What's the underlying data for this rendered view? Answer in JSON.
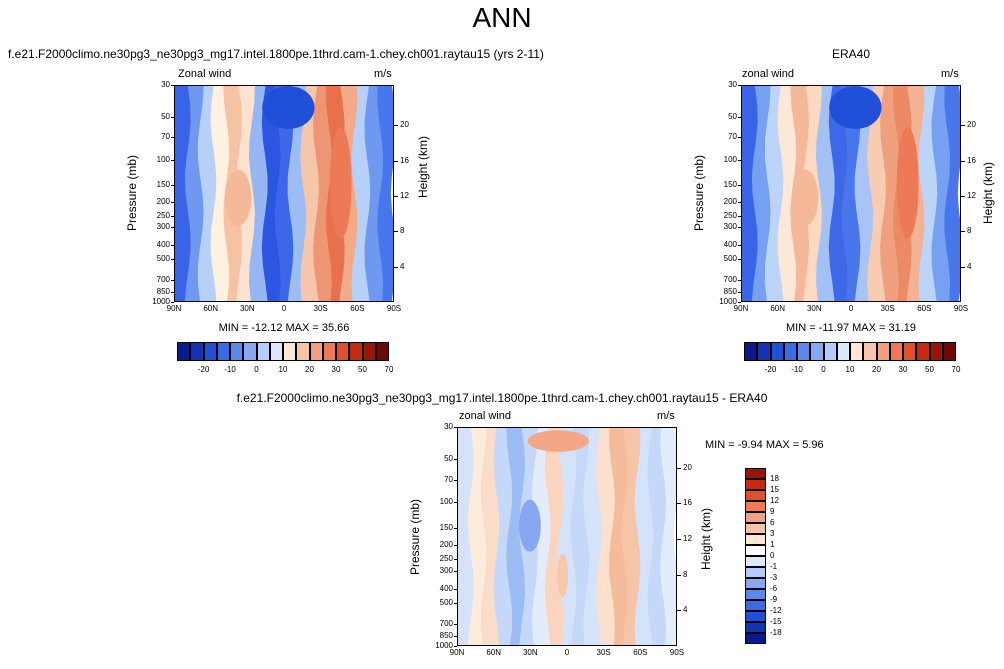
{
  "page": {
    "title": "ANN"
  },
  "chart_data": [
    {
      "type": "heatmap",
      "id": "model",
      "title": "f.e21.F2000climo.ne30pg3_ne30pg3_mg17.intel.1800pe.1thrd.cam-1.chey.ch001.raytau15 (yrs 2-11)",
      "left_label": "Zonal wind",
      "right_label": "m/s",
      "ylabel": "Pressure (mb)",
      "ylabel_right": "Height (km)",
      "x_ticks": [
        "90N",
        "60N",
        "30N",
        "0",
        "30S",
        "60S",
        "90S"
      ],
      "p_ticks": [
        "30",
        "50",
        "70",
        "100",
        "150",
        "200",
        "250",
        "300",
        "400",
        "500",
        "700",
        "850",
        "1000"
      ],
      "h_ticks": [
        "20",
        "16",
        "12",
        "8",
        "4"
      ],
      "stats": "MIN = -12.12   MAX =  35.66",
      "colorbar_labels": [
        "-20",
        "-10",
        "0",
        "10",
        "20",
        "30",
        "50",
        "70"
      ],
      "columns": [
        {
          "lat": 90,
          "c": "#3a64e8"
        },
        {
          "lat": 75,
          "c": "#6f99f0"
        },
        {
          "lat": 60,
          "c": "#b6d0f8"
        },
        {
          "lat": 45,
          "c": "#fff0e0"
        },
        {
          "lat": 35,
          "c": "#f5c2a4"
        },
        {
          "lat": 25,
          "c": "#fde2cf"
        },
        {
          "lat": 15,
          "c": "#96b6f4"
        },
        {
          "lat": 5,
          "c": "#2a56e0"
        },
        {
          "lat": -5,
          "c": "#3b67e8"
        },
        {
          "lat": -15,
          "c": "#9cbcf4"
        },
        {
          "lat": -25,
          "c": "#f6c6aa"
        },
        {
          "lat": -35,
          "c": "#ee9673"
        },
        {
          "lat": -45,
          "c": "#e8704c"
        },
        {
          "lat": -55,
          "c": "#f3aa88"
        },
        {
          "lat": -65,
          "c": "#b6d0f8"
        },
        {
          "lat": -75,
          "c": "#6f99f0"
        },
        {
          "lat": -90,
          "c": "#4777ec"
        }
      ]
    },
    {
      "type": "heatmap",
      "id": "obs",
      "title": "ERA40",
      "left_label": "zonal wind",
      "right_label": "m/s",
      "ylabel": "Pressure (mb)",
      "ylabel_right": "Height (km)",
      "x_ticks": [
        "90N",
        "60N",
        "30N",
        "0",
        "30S",
        "60S",
        "90S"
      ],
      "p_ticks": [
        "30",
        "50",
        "70",
        "100",
        "150",
        "200",
        "250",
        "300",
        "400",
        "500",
        "700",
        "850",
        "1000"
      ],
      "h_ticks": [
        "20",
        "16",
        "12",
        "8",
        "4"
      ],
      "stats": "MIN = -11.97   MAX =  31.19",
      "colorbar_labels": [
        "-20",
        "-10",
        "0",
        "10",
        "20",
        "30",
        "50",
        "70"
      ],
      "columns": [
        {
          "lat": 90,
          "c": "#3a64e8"
        },
        {
          "lat": 75,
          "c": "#76a0f2"
        },
        {
          "lat": 60,
          "c": "#bcd4f8"
        },
        {
          "lat": 45,
          "c": "#fde8d8"
        },
        {
          "lat": 35,
          "c": "#f4b898"
        },
        {
          "lat": 25,
          "c": "#fdd9c2"
        },
        {
          "lat": 15,
          "c": "#a4c1f6"
        },
        {
          "lat": 5,
          "c": "#3d68e8"
        },
        {
          "lat": -5,
          "c": "#4a76ec"
        },
        {
          "lat": -15,
          "c": "#a8c4f6"
        },
        {
          "lat": -25,
          "c": "#f7ccb2"
        },
        {
          "lat": -35,
          "c": "#f0a07e"
        },
        {
          "lat": -45,
          "c": "#ed8a66"
        },
        {
          "lat": -55,
          "c": "#f4b294"
        },
        {
          "lat": -65,
          "c": "#bcd4f8"
        },
        {
          "lat": -75,
          "c": "#76a0f2"
        },
        {
          "lat": -90,
          "c": "#4a76ec"
        }
      ]
    },
    {
      "type": "heatmap",
      "id": "diff",
      "title": "f.e21.F2000climo.ne30pg3_ne30pg3_mg17.intel.1800pe.1thrd.cam-1.chey.ch001.raytau15 - ERA40",
      "left_label": "zonal wind",
      "right_label": "m/s",
      "ylabel": "Pressure (mb)",
      "ylabel_right": "Height (km)",
      "x_ticks": [
        "90N",
        "60N",
        "30N",
        "0",
        "30S",
        "60S",
        "90S"
      ],
      "p_ticks": [
        "30",
        "50",
        "70",
        "100",
        "150",
        "200",
        "250",
        "300",
        "400",
        "500",
        "700",
        "850",
        "1000"
      ],
      "h_ticks": [
        "20",
        "16",
        "12",
        "8",
        "4"
      ],
      "stats": "MIN = -9.94   MAX =  5.96",
      "colorbar_labels": [
        "18",
        "15",
        "12",
        "9",
        "6",
        "3",
        "1",
        "0",
        "-1",
        "-3",
        "-6",
        "-9",
        "-12",
        "-15",
        "-18"
      ],
      "columns": [
        {
          "lat": 90,
          "c": "#d4e3fa"
        },
        {
          "lat": 75,
          "c": "#fdebdc"
        },
        {
          "lat": 60,
          "c": "#fbdcc8"
        },
        {
          "lat": 45,
          "c": "#c5d8f9"
        },
        {
          "lat": 35,
          "c": "#9cbcf4"
        },
        {
          "lat": 25,
          "c": "#c5d8f9"
        },
        {
          "lat": 15,
          "c": "#e3ecfb"
        },
        {
          "lat": 5,
          "c": "#fad4bc"
        },
        {
          "lat": -5,
          "c": "#d4e3fa"
        },
        {
          "lat": -15,
          "c": "#c5d8f9"
        },
        {
          "lat": -25,
          "c": "#d4e3fa"
        },
        {
          "lat": -35,
          "c": "#fbe0cd"
        },
        {
          "lat": -45,
          "c": "#f5bc9c"
        },
        {
          "lat": -55,
          "c": "#f6c4a6"
        },
        {
          "lat": -65,
          "c": "#d4e3fa"
        },
        {
          "lat": -75,
          "c": "#c5d8f9"
        },
        {
          "lat": -90,
          "c": "#e3ecfb"
        }
      ]
    }
  ],
  "colorbar_colors": {
    "horizontal": [
      "#0a1a8c",
      "#1433b4",
      "#2050d8",
      "#3a6ae6",
      "#5c88ee",
      "#86a8f2",
      "#b4ccf8",
      "#dce8fc",
      "#fde6d4",
      "#f8c4a8",
      "#f2a080",
      "#ec7a56",
      "#e0502c",
      "#c42a14",
      "#9c1408",
      "#6e0804"
    ],
    "vertical": [
      "#9c1408",
      "#c42a14",
      "#e0502c",
      "#ec7a56",
      "#f2a080",
      "#f8c4a8",
      "#fde6d4",
      "#ffffff",
      "#dce8fc",
      "#b4ccf8",
      "#86a8f2",
      "#5c88ee",
      "#3a6ae6",
      "#2050d8",
      "#1433b4",
      "#0a1a8c"
    ]
  }
}
